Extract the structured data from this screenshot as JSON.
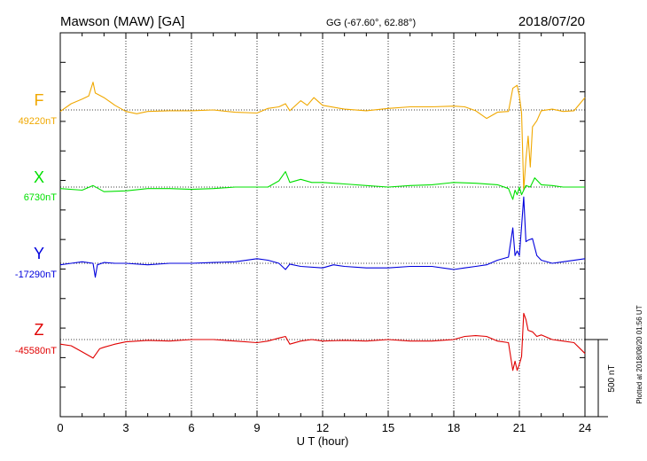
{
  "header": {
    "station": "Mawson (MAW)  [GA]",
    "coords": "GG (-67.60°,  62.88°)",
    "date": "2018/07/20"
  },
  "footer": {
    "plotted": "Plotted at 2018/08/20 01:56 UT"
  },
  "colors": {
    "F": "#f0a800",
    "X": "#00e000",
    "Y": "#0000dd",
    "Z": "#e00000"
  },
  "chart_data": {
    "type": "line",
    "xlabel": "U T (hour)",
    "xlim": [
      0,
      24
    ],
    "xticks": [
      0,
      3,
      6,
      9,
      12,
      15,
      18,
      21,
      24
    ],
    "scale_bar": {
      "value": 500,
      "label": "500 nT"
    },
    "grid": "vertical dotted at every 3 hours; dotted baseline per component",
    "series": [
      {
        "name": "F",
        "baseline_label": "49220nT",
        "baseline": 49220,
        "points": [
          [
            0,
            49210
          ],
          [
            0.5,
            49260
          ],
          [
            1,
            49290
          ],
          [
            1.3,
            49310
          ],
          [
            1.5,
            49400
          ],
          [
            1.6,
            49330
          ],
          [
            2,
            49300
          ],
          [
            2.5,
            49250
          ],
          [
            3,
            49210
          ],
          [
            3.5,
            49195
          ],
          [
            4,
            49210
          ],
          [
            5,
            49215
          ],
          [
            6,
            49215
          ],
          [
            7,
            49220
          ],
          [
            8,
            49205
          ],
          [
            9,
            49200
          ],
          [
            9.5,
            49230
          ],
          [
            10,
            49240
          ],
          [
            10.3,
            49260
          ],
          [
            10.5,
            49215
          ],
          [
            11,
            49280
          ],
          [
            11.3,
            49250
          ],
          [
            11.6,
            49300
          ],
          [
            12,
            49250
          ],
          [
            13,
            49225
          ],
          [
            14,
            49215
          ],
          [
            15,
            49230
          ],
          [
            16,
            49240
          ],
          [
            17,
            49240
          ],
          [
            18,
            49245
          ],
          [
            18.5,
            49240
          ],
          [
            19,
            49215
          ],
          [
            19.5,
            49165
          ],
          [
            20,
            49205
          ],
          [
            20.5,
            49210
          ],
          [
            20.7,
            49360
          ],
          [
            20.9,
            49380
          ],
          [
            21,
            49310
          ],
          [
            21.1,
            49200
          ],
          [
            21.2,
            48700
          ],
          [
            21.3,
            48900
          ],
          [
            21.4,
            49050
          ],
          [
            21.5,
            48850
          ],
          [
            21.6,
            49110
          ],
          [
            21.8,
            49150
          ],
          [
            22,
            49215
          ],
          [
            22.5,
            49225
          ],
          [
            23,
            49210
          ],
          [
            23.5,
            49215
          ],
          [
            24,
            49300
          ]
        ]
      },
      {
        "name": "X",
        "baseline_label": "6730nT",
        "baseline": 6730,
        "points": [
          [
            0,
            6720
          ],
          [
            1,
            6710
          ],
          [
            1.5,
            6740
          ],
          [
            2,
            6700
          ],
          [
            3,
            6705
          ],
          [
            4,
            6720
          ],
          [
            5,
            6720
          ],
          [
            6,
            6715
          ],
          [
            7,
            6720
          ],
          [
            8,
            6730
          ],
          [
            9,
            6730
          ],
          [
            9.5,
            6730
          ],
          [
            10,
            6770
          ],
          [
            10.3,
            6830
          ],
          [
            10.5,
            6760
          ],
          [
            11,
            6780
          ],
          [
            11.5,
            6760
          ],
          [
            12,
            6760
          ],
          [
            13,
            6750
          ],
          [
            14,
            6740
          ],
          [
            15,
            6730
          ],
          [
            16,
            6740
          ],
          [
            17,
            6745
          ],
          [
            18,
            6760
          ],
          [
            19,
            6755
          ],
          [
            20,
            6745
          ],
          [
            20.5,
            6720
          ],
          [
            20.7,
            6650
          ],
          [
            20.8,
            6710
          ],
          [
            20.9,
            6680
          ],
          [
            21,
            6730
          ],
          [
            21.1,
            6680
          ],
          [
            21.2,
            6710
          ],
          [
            21.3,
            6740
          ],
          [
            21.5,
            6730
          ],
          [
            21.7,
            6790
          ],
          [
            22,
            6745
          ],
          [
            22.5,
            6740
          ],
          [
            23,
            6730
          ],
          [
            24,
            6730
          ]
        ]
      },
      {
        "name": "Y",
        "baseline_label": "-17290nT",
        "baseline": -17290,
        "points": [
          [
            0,
            -17300
          ],
          [
            0.5,
            -17290
          ],
          [
            1,
            -17280
          ],
          [
            1.5,
            -17290
          ],
          [
            1.6,
            -17380
          ],
          [
            1.7,
            -17300
          ],
          [
            2,
            -17285
          ],
          [
            2.5,
            -17290
          ],
          [
            3,
            -17290
          ],
          [
            4,
            -17300
          ],
          [
            5,
            -17290
          ],
          [
            6,
            -17290
          ],
          [
            7,
            -17285
          ],
          [
            8,
            -17280
          ],
          [
            9,
            -17260
          ],
          [
            9.5,
            -17270
          ],
          [
            10,
            -17290
          ],
          [
            10.3,
            -17330
          ],
          [
            10.5,
            -17295
          ],
          [
            11,
            -17310
          ],
          [
            12,
            -17320
          ],
          [
            12.5,
            -17300
          ],
          [
            13,
            -17310
          ],
          [
            14,
            -17320
          ],
          [
            15,
            -17320
          ],
          [
            16,
            -17310
          ],
          [
            17,
            -17310
          ],
          [
            18,
            -17330
          ],
          [
            18.5,
            -17320
          ],
          [
            19,
            -17310
          ],
          [
            19.5,
            -17300
          ],
          [
            20,
            -17270
          ],
          [
            20.5,
            -17250
          ],
          [
            20.7,
            -17060
          ],
          [
            20.8,
            -17240
          ],
          [
            20.9,
            -17210
          ],
          [
            21,
            -17240
          ],
          [
            21.1,
            -17050
          ],
          [
            21.2,
            -16860
          ],
          [
            21.3,
            -17150
          ],
          [
            21.4,
            -17140
          ],
          [
            21.6,
            -17130
          ],
          [
            21.8,
            -17240
          ],
          [
            22,
            -17270
          ],
          [
            22.5,
            -17290
          ],
          [
            23,
            -17280
          ],
          [
            24,
            -17260
          ]
        ]
      },
      {
        "name": "Z",
        "baseline_label": "-45580nT",
        "baseline": -45580,
        "points": [
          [
            0,
            -45610
          ],
          [
            0.5,
            -45620
          ],
          [
            1,
            -45660
          ],
          [
            1.5,
            -45700
          ],
          [
            1.8,
            -45640
          ],
          [
            2,
            -45630
          ],
          [
            2.5,
            -45610
          ],
          [
            3,
            -45595
          ],
          [
            4,
            -45585
          ],
          [
            5,
            -45590
          ],
          [
            6,
            -45580
          ],
          [
            7,
            -45580
          ],
          [
            8,
            -45590
          ],
          [
            9,
            -45600
          ],
          [
            9.5,
            -45590
          ],
          [
            10,
            -45570
          ],
          [
            10.3,
            -45560
          ],
          [
            10.5,
            -45610
          ],
          [
            11,
            -45590
          ],
          [
            11.5,
            -45580
          ],
          [
            12,
            -45590
          ],
          [
            13,
            -45585
          ],
          [
            14,
            -45590
          ],
          [
            15,
            -45580
          ],
          [
            16,
            -45590
          ],
          [
            17,
            -45590
          ],
          [
            18,
            -45580
          ],
          [
            18.5,
            -45560
          ],
          [
            19,
            -45555
          ],
          [
            19.5,
            -45560
          ],
          [
            20,
            -45590
          ],
          [
            20.5,
            -45600
          ],
          [
            20.7,
            -45780
          ],
          [
            20.8,
            -45720
          ],
          [
            20.9,
            -45780
          ],
          [
            21,
            -45740
          ],
          [
            21.1,
            -45690
          ],
          [
            21.2,
            -45410
          ],
          [
            21.3,
            -45450
          ],
          [
            21.4,
            -45520
          ],
          [
            21.6,
            -45530
          ],
          [
            21.8,
            -45560
          ],
          [
            22,
            -45550
          ],
          [
            22.5,
            -45580
          ],
          [
            23,
            -45590
          ],
          [
            23.5,
            -45600
          ],
          [
            24,
            -45670
          ]
        ]
      }
    ]
  }
}
